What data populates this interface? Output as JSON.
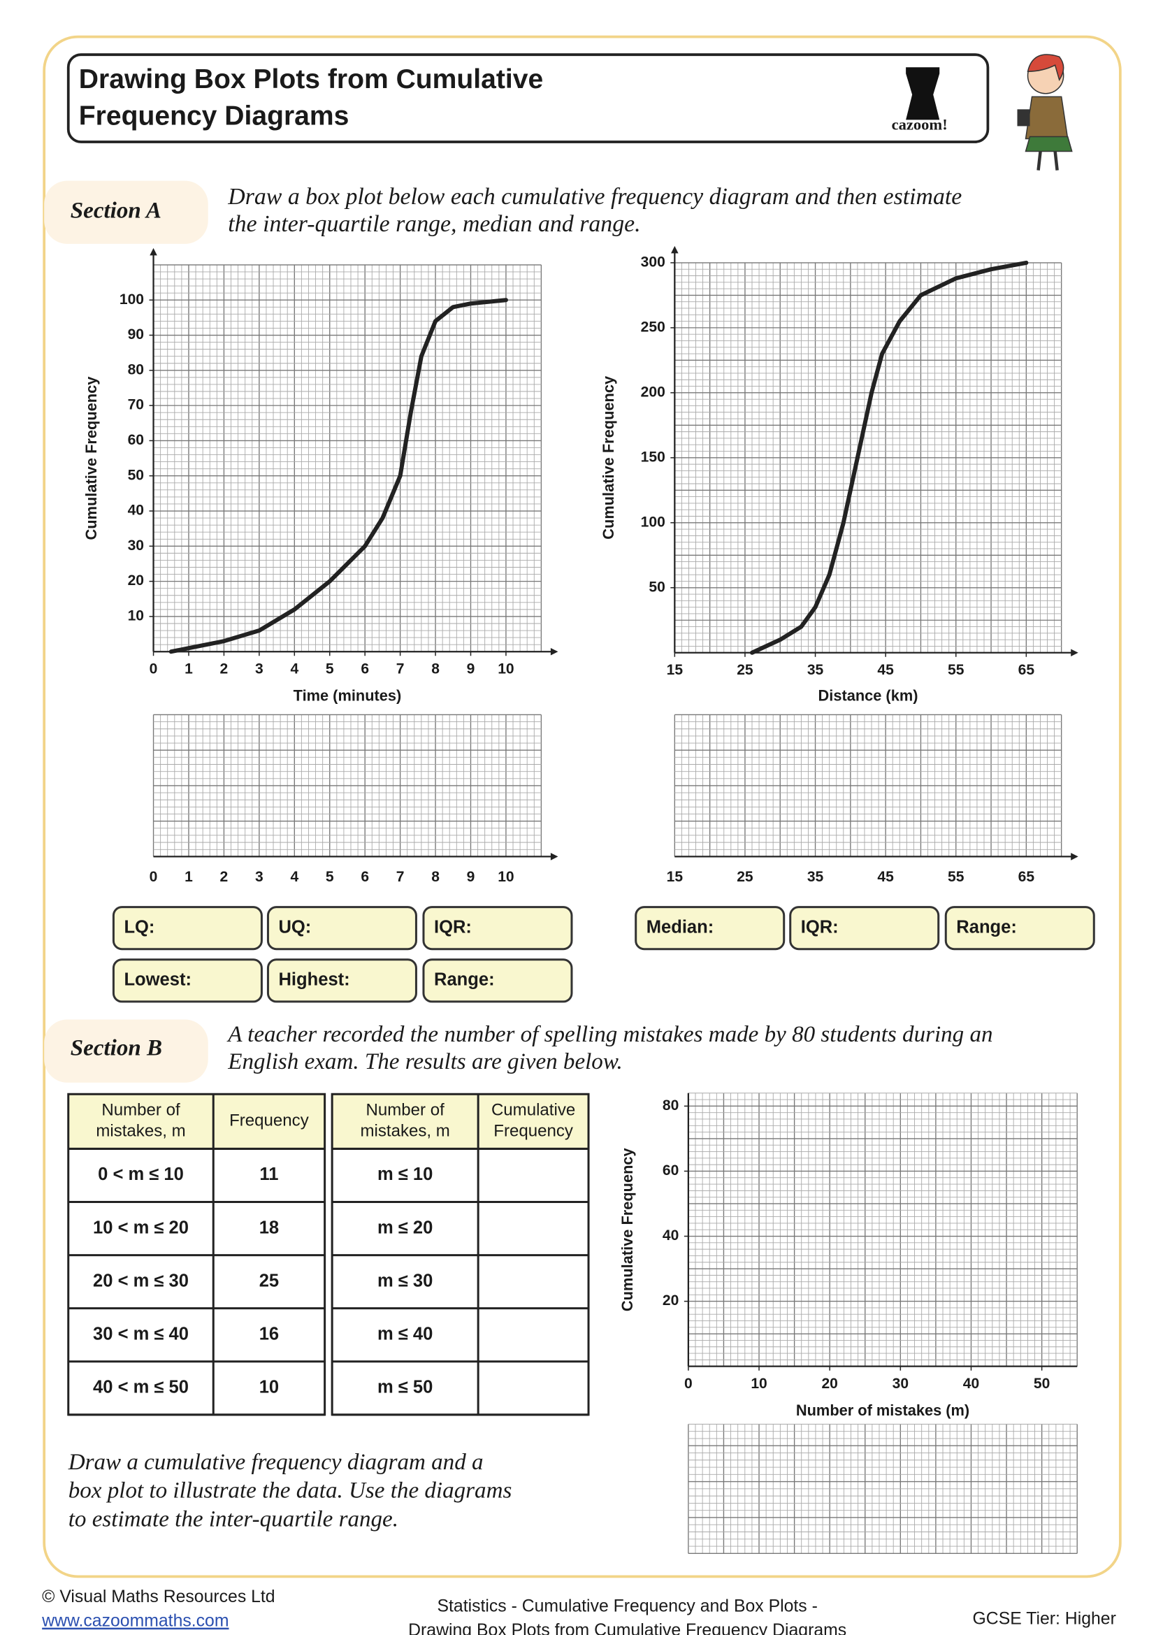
{
  "header": {
    "title_lines": [
      "Drawing Box Plots from Cumulative",
      "Frequency Diagrams"
    ],
    "logo_text": "cazoom!"
  },
  "section_a": {
    "label": "Section A",
    "instruction_lines": [
      "Draw a box plot below each cumulative frequency diagram and then estimate",
      "the inter-quartile range, median and range."
    ],
    "answer_boxes_left": [
      "LQ:",
      "UQ:",
      "IQR:",
      "Lowest:",
      "Highest:",
      "Range:"
    ],
    "answer_boxes_right": [
      "Median:",
      "IQR:",
      "Range:"
    ]
  },
  "section_b": {
    "label": "Section B",
    "instruction_lines": [
      "A teacher recorded the number of spelling  mistakes made by 80 students during an",
      "English exam. The results are given below."
    ],
    "frequency_table": {
      "header": [
        [
          "Number of",
          "mistakes, m"
        ],
        [
          "Frequency"
        ]
      ],
      "rows": [
        [
          "0 < m ≤ 10",
          11
        ],
        [
          "10 < m ≤ 20",
          18
        ],
        [
          "20 < m ≤ 30",
          25
        ],
        [
          "30 < m ≤ 40",
          16
        ],
        [
          "40 < m ≤ 50",
          10
        ]
      ]
    },
    "cumulative_table": {
      "header": [
        [
          "Number of",
          "mistakes, m"
        ],
        [
          "Cumulative",
          "Frequency"
        ]
      ],
      "rows": [
        "m ≤ 10",
        "m ≤ 20",
        "m ≤ 30",
        "m ≤ 40",
        "m ≤ 50"
      ]
    },
    "task_lines": [
      "Draw a cumulative frequency diagram and a",
      "box plot to illustrate the data. Use the diagrams",
      "to estimate the inter-quartile range."
    ]
  },
  "chart_data": [
    {
      "type": "line",
      "y_label": "Cumulative Frequency",
      "x_label": "Time (minutes)",
      "xlim": [
        0,
        11
      ],
      "xticks": [
        0,
        1,
        2,
        3,
        4,
        5,
        6,
        7,
        8,
        9,
        10
      ],
      "ylim": [
        0,
        110
      ],
      "yticks": [
        10,
        20,
        30,
        40,
        50,
        60,
        70,
        80,
        90,
        100
      ],
      "grid": true,
      "color": "#222222",
      "x": [
        0.5,
        1,
        2,
        3,
        4,
        5,
        6,
        6.5,
        7,
        7.3,
        7.6,
        8,
        8.5,
        9,
        10
      ],
      "values": [
        0,
        1,
        3,
        6,
        12,
        20,
        30,
        38,
        50,
        68,
        84,
        94,
        98,
        99,
        100
      ]
    },
    {
      "type": "line",
      "y_label": "Cumulative Frequency",
      "x_label": "Distance (km)",
      "xlim": [
        15,
        70
      ],
      "xticks": [
        15,
        25,
        35,
        45,
        55,
        65
      ],
      "ylim": [
        0,
        300
      ],
      "yticks": [
        50,
        100,
        150,
        200,
        250,
        300
      ],
      "grid": true,
      "color": "#222222",
      "x": [
        26,
        30,
        33,
        35,
        37,
        39,
        41,
        43,
        44.5,
        47,
        50,
        55,
        60,
        65
      ],
      "values": [
        0,
        10,
        20,
        35,
        60,
        100,
        150,
        200,
        230,
        255,
        275,
        288,
        295,
        300
      ]
    },
    {
      "type": "line",
      "y_label": "Cumulative Frequency",
      "x_label": "Number of mistakes (m)",
      "xlim": [
        0,
        55
      ],
      "xticks": [
        0,
        10,
        20,
        30,
        40,
        50
      ],
      "ylim": [
        0,
        84
      ],
      "yticks": [
        20,
        40,
        60,
        80
      ],
      "grid": true
    }
  ],
  "footer": {
    "copyright": "© Visual Maths Resources Ltd",
    "website": "www.cazoommaths.com",
    "topic_lines": [
      "Statistics - Cumulative Frequency and Box Plots -",
      "Drawing Box Plots from Cumulative Frequency Diagrams"
    ],
    "tier": "GCSE Tier: Higher"
  }
}
